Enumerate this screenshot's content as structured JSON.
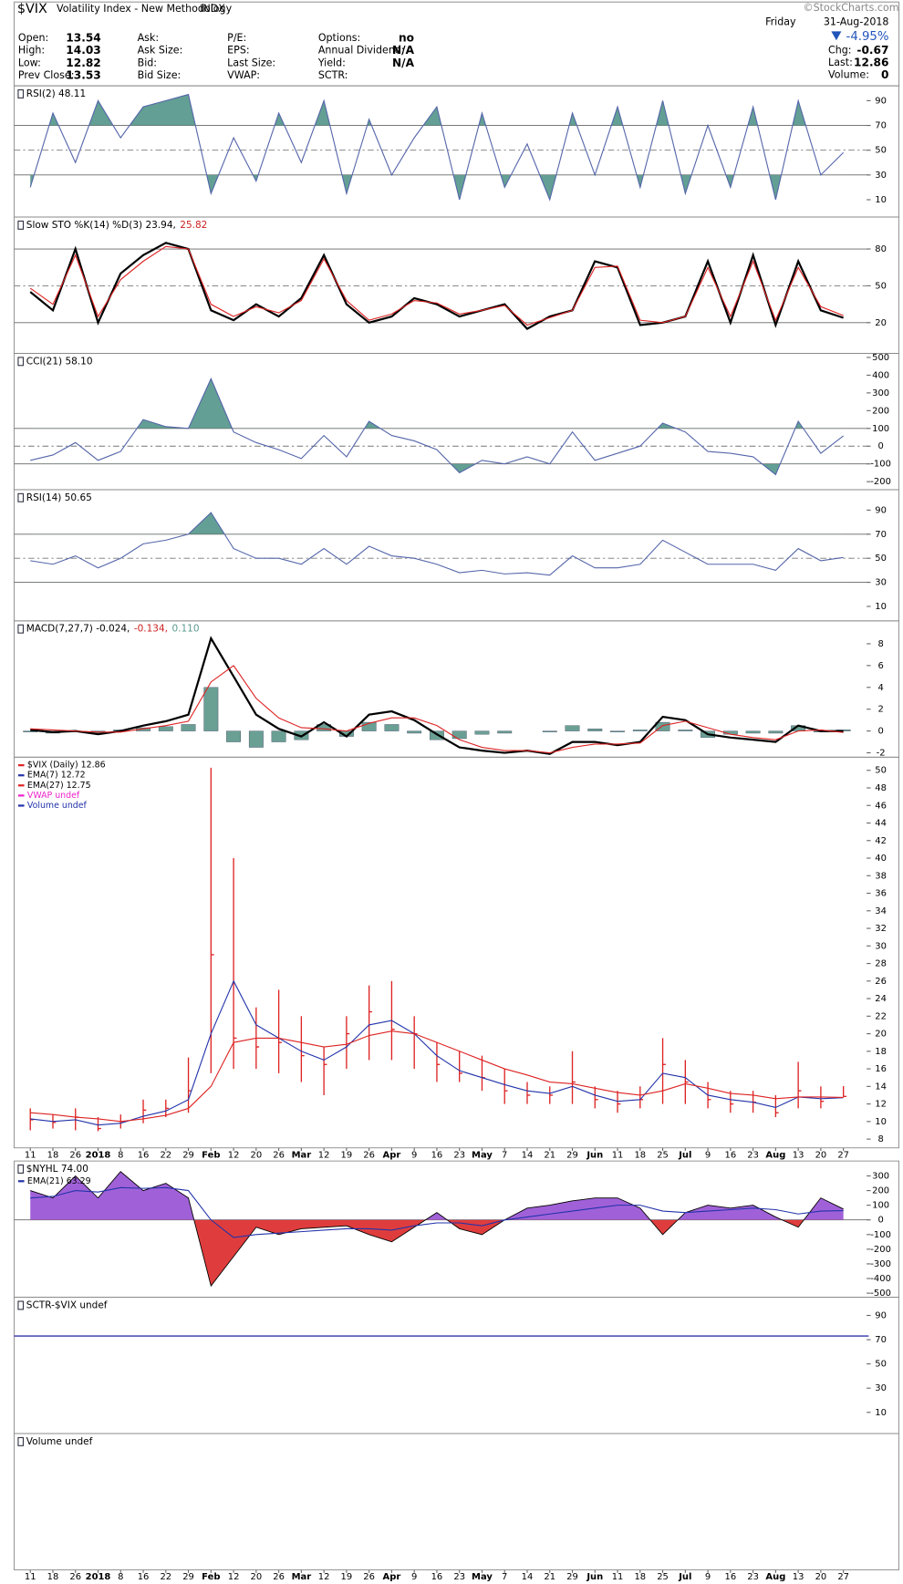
{
  "header": {
    "symbol": "$VIX",
    "name": "Volatility Index - New Methodology",
    "exchange": "INDX",
    "source": "©StockCharts.com",
    "weekday": "Friday",
    "date": "31-Aug-2018",
    "change_pct": "-4.95%",
    "columns": [
      [
        {
          "label": "Open:",
          "value": "13.54"
        },
        {
          "label": "High:",
          "value": "14.03"
        },
        {
          "label": "Low:",
          "value": "12.82"
        },
        {
          "label": "Prev Close:",
          "value": "13.53"
        }
      ],
      [
        {
          "label": "Ask:"
        },
        {
          "label": "Ask Size:"
        },
        {
          "label": "Bid:"
        },
        {
          "label": "Bid Size:"
        }
      ],
      [
        {
          "label": "P/E:"
        },
        {
          "label": "EPS:"
        },
        {
          "label": "Last Size:"
        },
        {
          "label": "VWAP:"
        }
      ],
      [
        {
          "label": "Options:",
          "value": "no"
        },
        {
          "label": "Annual Dividend:",
          "value": "N/A"
        },
        {
          "label": "Yield:",
          "value": "N/A"
        },
        {
          "label": "SCTR:"
        }
      ],
      [
        {
          "label": "Chg:",
          "value": "-0.67"
        },
        {
          "label": "Last:",
          "value": "12.86"
        },
        {
          "label": "Volume:",
          "value": "0"
        }
      ]
    ]
  },
  "chart_data": [
    {
      "type": "line",
      "title_parts": [
        {
          "text": "RSI(2) 48.11",
          "color": "#000000"
        }
      ],
      "ylim": [
        -4,
        102
      ],
      "yticks": [
        10,
        30,
        50,
        70,
        90
      ],
      "levels": [
        70,
        30
      ],
      "midline": 50,
      "fill_above": "#5b9a8e",
      "fill_below": "#5b9a8e",
      "series": [
        {
          "color": "#5566aa",
          "values": [
            20,
            80,
            40,
            90,
            60,
            85,
            90,
            95,
            15,
            60,
            25,
            80,
            40,
            90,
            15,
            75,
            30,
            60,
            85,
            10,
            80,
            20,
            55,
            10,
            80,
            30,
            85,
            20,
            90,
            15,
            70,
            20,
            85,
            10,
            90,
            30,
            48.11
          ]
        }
      ]
    },
    {
      "type": "line",
      "title_parts": [
        {
          "text": "Slow STO %K(14) %D(3) 23.94,",
          "color": "#000000"
        },
        {
          "text": "25.82",
          "color": "#cc2222"
        }
      ],
      "ylim": [
        -5,
        106
      ],
      "yticks": [
        20,
        50,
        80
      ],
      "levels": [
        80,
        20
      ],
      "midline": 50,
      "series": [
        {
          "color": "#000000",
          "width": 2,
          "values": [
            45,
            30,
            80,
            20,
            60,
            75,
            85,
            80,
            30,
            22,
            35,
            25,
            40,
            75,
            35,
            20,
            25,
            40,
            35,
            25,
            30,
            35,
            15,
            25,
            30,
            70,
            65,
            18,
            20,
            25,
            70,
            20,
            75,
            18,
            70,
            30,
            23.94
          ]
        },
        {
          "color": "#dd2222",
          "width": 1,
          "values": [
            48,
            35,
            75,
            25,
            55,
            70,
            82,
            80,
            35,
            25,
            33,
            28,
            38,
            72,
            38,
            22,
            27,
            38,
            36,
            27,
            30,
            34,
            18,
            24,
            30,
            65,
            66,
            22,
            20,
            25,
            65,
            25,
            70,
            22,
            65,
            33,
            25.82
          ]
        }
      ]
    },
    {
      "type": "line",
      "title_parts": [
        {
          "text": "CCI(21) 58.10",
          "color": "#000000"
        }
      ],
      "ylim": [
        -245,
        523
      ],
      "yticks": [
        500,
        400,
        300,
        200,
        100,
        0,
        -100,
        -200
      ],
      "levels": [
        100,
        -100
      ],
      "midline": 0,
      "fill_above": "#5b9a8e",
      "fill_below": "#5b9a8e",
      "series": [
        {
          "color": "#5566aa",
          "values": [
            -80,
            -50,
            20,
            -80,
            -30,
            150,
            110,
            100,
            380,
            80,
            20,
            -20,
            -70,
            60,
            -60,
            140,
            60,
            30,
            -20,
            -150,
            -80,
            -100,
            -60,
            -100,
            80,
            -80,
            -40,
            0,
            130,
            80,
            -30,
            -40,
            -60,
            -160,
            140,
            -40,
            58.1
          ]
        }
      ]
    },
    {
      "type": "line",
      "title_parts": [
        {
          "text": "RSI(14) 50.65",
          "color": "#000000"
        }
      ],
      "ylim": [
        -2,
        107
      ],
      "yticks": [
        10,
        30,
        50,
        70,
        90
      ],
      "levels": [
        70,
        30
      ],
      "midline": 50,
      "fill_above": "#5b9a8e",
      "fill_below": "#5b9a8e",
      "series": [
        {
          "color": "#5566aa",
          "values": [
            48,
            45,
            52,
            42,
            50,
            62,
            65,
            70,
            88,
            58,
            50,
            50,
            45,
            58,
            45,
            60,
            52,
            50,
            45,
            38,
            40,
            37,
            38,
            36,
            52,
            42,
            42,
            45,
            65,
            55,
            45,
            45,
            45,
            40,
            58,
            48,
            50.65
          ]
        }
      ]
    },
    {
      "type": "line",
      "title_parts": [
        {
          "text": "MACD(7,27,7) -0.024,",
          "color": "#000000"
        },
        {
          "text": "-0.134,",
          "color": "#cc2222"
        },
        {
          "text": "0.110",
          "color": "#5b9a8e"
        }
      ],
      "ylim": [
        -2.4,
        10.1
      ],
      "yticks": [
        -2,
        0,
        2,
        4,
        6,
        8
      ],
      "histogram": {
        "color": "#6a9f94",
        "values": [
          -0.1,
          -0.2,
          0.0,
          -0.2,
          0.1,
          0.3,
          0.4,
          0.6,
          4.0,
          -1.0,
          -1.5,
          -1.0,
          -0.8,
          0.6,
          -0.5,
          0.8,
          0.6,
          -0.2,
          -0.8,
          -0.7,
          -0.3,
          -0.2,
          0.0,
          -0.1,
          0.5,
          0.2,
          -0.1,
          0.1,
          0.8,
          0.1,
          -0.6,
          -0.3,
          -0.2,
          -0.2,
          0.5,
          -0.1,
          0.11
        ]
      },
      "series": [
        {
          "color": "#000000",
          "width": 2,
          "values": [
            0.1,
            -0.1,
            0.0,
            -0.3,
            0.0,
            0.5,
            0.9,
            1.5,
            8.5,
            5.0,
            1.5,
            0.2,
            -0.5,
            0.8,
            -0.5,
            1.5,
            1.8,
            1.0,
            -0.3,
            -1.5,
            -1.8,
            -2.0,
            -1.8,
            -2.1,
            -1.0,
            -1.0,
            -1.3,
            -1.0,
            1.3,
            1.0,
            -0.3,
            -0.6,
            -0.8,
            -1.0,
            0.5,
            0.0,
            -0.024
          ]
        },
        {
          "color": "#dd2222",
          "width": 1,
          "values": [
            0.2,
            0.1,
            0.0,
            -0.1,
            -0.1,
            0.2,
            0.5,
            0.9,
            4.5,
            6.0,
            3.0,
            1.2,
            0.3,
            0.2,
            0.0,
            0.7,
            1.2,
            1.2,
            0.5,
            -0.8,
            -1.5,
            -1.8,
            -1.8,
            -2.0,
            -1.5,
            -1.2,
            -1.2,
            -1.1,
            0.5,
            0.9,
            0.3,
            -0.3,
            -0.6,
            -0.8,
            0.0,
            0.1,
            -0.134
          ]
        }
      ]
    },
    {
      "type": "ohlc",
      "categories": [
        "11",
        "18",
        "26",
        "2018",
        "8",
        "16",
        "22",
        "29",
        "Feb",
        "12",
        "20",
        "26",
        "Mar",
        "12",
        "19",
        "26",
        "Apr",
        "9",
        "16",
        "23",
        "May",
        "7",
        "14",
        "21",
        "29",
        "Jun",
        "11",
        "18",
        "25",
        "Jul",
        "9",
        "16",
        "23",
        "Aug",
        "13",
        "20",
        "27"
      ],
      "ylim": [
        7,
        51.5
      ],
      "yticks": [
        8,
        10,
        12,
        14,
        16,
        18,
        20,
        22,
        24,
        26,
        28,
        30,
        32,
        34,
        36,
        38,
        40,
        42,
        44,
        46,
        48,
        50
      ],
      "series": [
        {
          "name": "$VIX (Daily) 12.86",
          "color": "#dd2222",
          "values": [
            10.2,
            9.9,
            10.5,
            9.2,
            10.0,
            11.3,
            11.5,
            13.5,
            29,
            19.5,
            18.5,
            19.0,
            17.5,
            16.5,
            20,
            22.5,
            20.5,
            20,
            16.5,
            15.5,
            15.0,
            13.5,
            13.0,
            13.0,
            14.5,
            12.5,
            12.0,
            12.5,
            16.5,
            14.5,
            12.5,
            12.0,
            12.2,
            11.0,
            13.5,
            12.3,
            12.86
          ],
          "high": [
            11.5,
            10.8,
            11.5,
            10.5,
            10.8,
            12.5,
            12.5,
            17.3,
            50.3,
            40,
            23,
            25,
            22,
            18.5,
            22,
            25.5,
            26,
            22,
            19,
            18,
            17.5,
            16,
            14.5,
            14,
            18,
            14,
            13.5,
            14,
            19.5,
            17,
            14.5,
            13.5,
            13.5,
            13,
            16.8,
            14,
            14.03
          ],
          "low": [
            9.0,
            9.2,
            9.0,
            8.9,
            9.2,
            9.8,
            10.5,
            11,
            15.5,
            16,
            16,
            15.5,
            14.5,
            13,
            16,
            17,
            17,
            16,
            14.5,
            14.5,
            13.5,
            12,
            12.0,
            12,
            12,
            11.5,
            11,
            11.5,
            12,
            12,
            11.5,
            11,
            11,
            10.5,
            11.5,
            11.5,
            12.82
          ]
        },
        {
          "name": "EMA(7) 12.72",
          "color": "#2233aa",
          "width": 1,
          "values": [
            10.3,
            10.0,
            10.2,
            9.6,
            9.8,
            10.6,
            11.2,
            12.5,
            20,
            26,
            21,
            19.5,
            18,
            17,
            18.5,
            21,
            21.5,
            20,
            17.5,
            15.8,
            15,
            14.2,
            13.5,
            13.2,
            14,
            13,
            12.3,
            12.5,
            15.5,
            15,
            13,
            12.5,
            12.2,
            11.6,
            12.8,
            12.6,
            12.72
          ]
        },
        {
          "name": "EMA(27) 12.75",
          "color": "#dd2222",
          "width": 1,
          "values": [
            11,
            10.8,
            10.5,
            10.3,
            10.0,
            10.3,
            10.7,
            11.5,
            14,
            19,
            19.5,
            19.5,
            19,
            18.5,
            18.8,
            19.8,
            20.3,
            20,
            19,
            18,
            17,
            16,
            15.3,
            14.5,
            14.3,
            13.8,
            13.3,
            13,
            13.5,
            14.3,
            13.8,
            13.2,
            13,
            12.6,
            12.8,
            12.8,
            12.75
          ]
        }
      ],
      "legend_extra": [
        {
          "text": "VWAP undef",
          "color": "#ee22cc"
        },
        {
          "text": "Volume undef",
          "color": "#2233aa"
        }
      ]
    },
    {
      "type": "area",
      "title_parts": [
        {
          "text": "$NYHL 74.00",
          "color": "#000000"
        }
      ],
      "ylim": [
        -528,
        402
      ],
      "yticks": [
        300,
        200,
        100,
        0,
        -100,
        -200,
        -300,
        -400,
        -500
      ],
      "levels": [
        0
      ],
      "fill_above": "#9b59d6",
      "fill_below": "#dd3333",
      "series": [
        {
          "color": "#000000",
          "width": 0.8,
          "values": [
            200,
            150,
            300,
            150,
            330,
            200,
            250,
            150,
            -450,
            -250,
            -50,
            -100,
            -60,
            -50,
            -40,
            -100,
            -150,
            -50,
            50,
            -60,
            -100,
            0,
            80,
            100,
            130,
            150,
            150,
            80,
            -100,
            50,
            100,
            80,
            100,
            20,
            -50,
            150,
            74.0
          ]
        },
        {
          "name": "EMA(21) 63.29",
          "color": "#2233aa",
          "width": 1,
          "values": [
            150,
            160,
            200,
            190,
            220,
            215,
            220,
            200,
            0,
            -120,
            -100,
            -90,
            -80,
            -70,
            -60,
            -60,
            -70,
            -40,
            -20,
            -20,
            -40,
            0,
            20,
            40,
            60,
            80,
            100,
            100,
            60,
            50,
            60,
            70,
            80,
            70,
            40,
            60,
            63.29
          ]
        }
      ]
    },
    {
      "type": "line",
      "title_parts": [
        {
          "text": "SCTR-$VIX undef",
          "color": "#000000"
        }
      ],
      "ylim": [
        -7.5,
        105
      ],
      "yticks": [
        90,
        70,
        50,
        30,
        10
      ],
      "levels": [
        73
      ],
      "level_color": "#3333aa",
      "series": []
    },
    {
      "type": "line",
      "title_parts": [
        {
          "text": "Volume undef",
          "color": "#000000"
        }
      ],
      "series": []
    }
  ]
}
